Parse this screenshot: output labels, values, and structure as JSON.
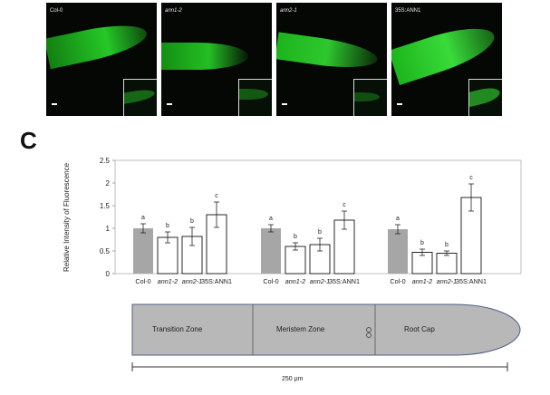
{
  "panel_letter": "C",
  "micrographs": [
    {
      "label": "Col-0",
      "italic": false
    },
    {
      "label": "ann1-2",
      "italic": true
    },
    {
      "label": "ann2-1",
      "italic": true
    },
    {
      "label": "35S:ANN1",
      "italic": false
    }
  ],
  "colors": {
    "fluorescence": "#1fd21f",
    "col0_bar": "#a6a6a6",
    "other_bar": "#ffffff",
    "root_fill": "#b8b8b8"
  },
  "chart_data": {
    "type": "bar",
    "ylabel": "Relative Intensity of Fluorescence",
    "ylim": [
      0,
      2.5
    ],
    "yticks": [
      "0",
      "0.5",
      "1",
      "1.5",
      "2",
      "2.5"
    ],
    "groups": [
      {
        "name": "Transition Zone",
        "categories": [
          "Col-0",
          "ann1-2",
          "ann2-1",
          "35S:ANN1"
        ],
        "values": [
          1.0,
          0.8,
          0.82,
          1.3
        ],
        "errors": [
          0.1,
          0.12,
          0.2,
          0.28
        ],
        "letters": [
          "a",
          "b",
          "b",
          "c"
        ]
      },
      {
        "name": "Meristem Zone",
        "categories": [
          "Col-0",
          "ann1-2",
          "ann2-1",
          "35S:ANN1"
        ],
        "values": [
          1.0,
          0.6,
          0.64,
          1.18
        ],
        "errors": [
          0.08,
          0.08,
          0.14,
          0.2
        ],
        "letters": [
          "a",
          "b",
          "b",
          "c"
        ]
      },
      {
        "name": "Root Cap",
        "categories": [
          "Col-0",
          "ann1-2",
          "ann2-1",
          "35S:ANN1"
        ],
        "values": [
          0.98,
          0.47,
          0.45,
          1.68
        ],
        "errors": [
          0.1,
          0.07,
          0.05,
          0.3
        ],
        "letters": [
          "a",
          "b",
          "b",
          "c"
        ]
      }
    ],
    "italic_categories": [
      "ann1-2",
      "ann2-1"
    ]
  },
  "diagram": {
    "zones": [
      "Transition Zone",
      "Meristem Zone",
      "Root Cap"
    ],
    "scale_label": "250 µm"
  }
}
